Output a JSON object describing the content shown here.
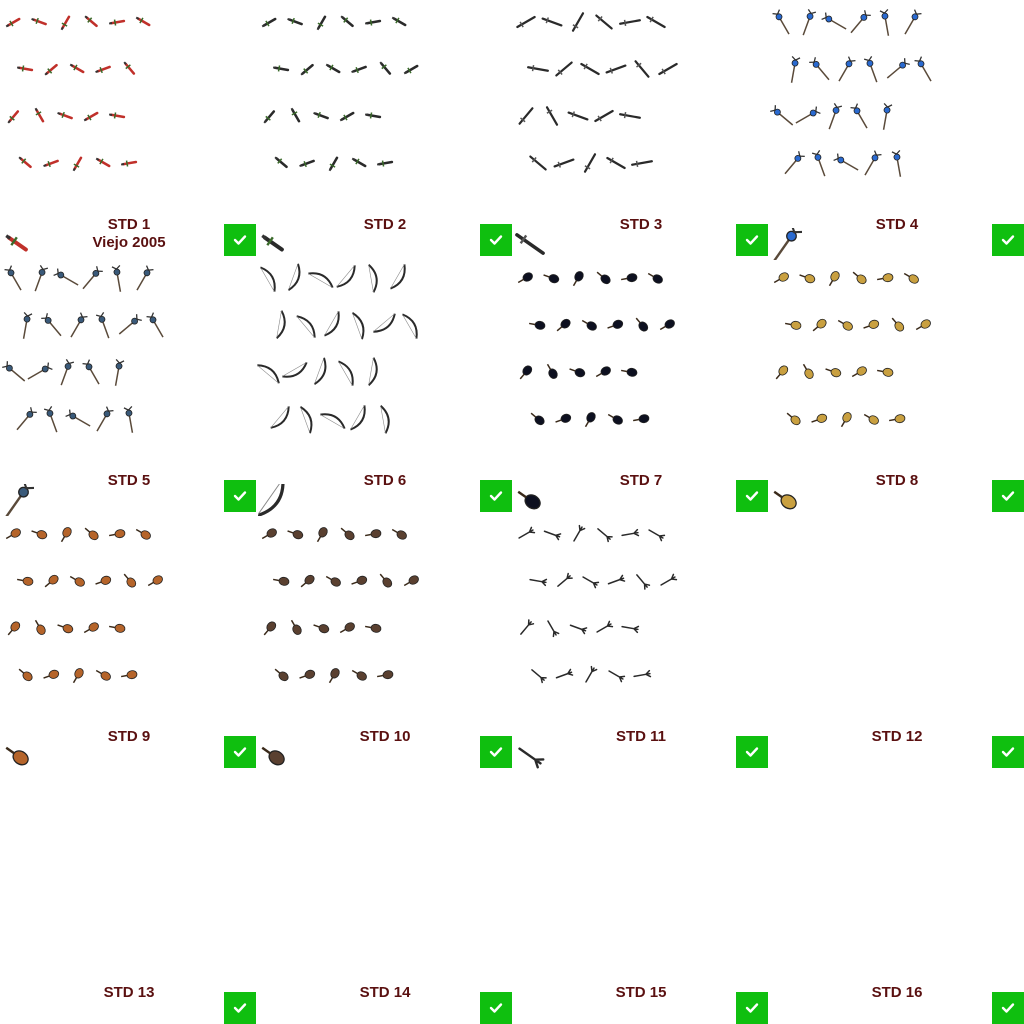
{
  "cells": [
    {
      "label": "STD 1",
      "sublabel": "Viejo 2005",
      "style": "dagger",
      "color": "#c0302a",
      "rows": [
        6,
        5,
        5,
        5
      ],
      "selected": true
    },
    {
      "label": "STD 2",
      "style": "dagger",
      "color": "#2a2a2a",
      "rows": [
        6,
        6,
        5,
        5
      ],
      "selected": true
    },
    {
      "label": "STD 3",
      "style": "sword",
      "color": "#2a2a2a",
      "rows": [
        6,
        6,
        5,
        5
      ],
      "selected": true
    },
    {
      "label": "STD 4",
      "style": "staff",
      "color": "#2a6ad0",
      "rows": [
        6,
        6,
        5,
        5
      ],
      "selected": true
    },
    {
      "label": "STD 5",
      "style": "staff",
      "color": "#3a5a7a",
      "rows": [
        6,
        6,
        5,
        5
      ],
      "selected": true
    },
    {
      "label": "STD 6",
      "style": "bow",
      "color": "#2a2a2a",
      "rows": [
        6,
        6,
        5,
        5
      ],
      "selected": true
    },
    {
      "label": "STD 7",
      "style": "lute",
      "color": "#0d1020",
      "rows": [
        6,
        6,
        5,
        5
      ],
      "selected": true
    },
    {
      "label": "STD 8",
      "style": "lute",
      "color": "#c9a040",
      "rows": [
        6,
        6,
        5,
        5
      ],
      "selected": true
    },
    {
      "label": "STD 9",
      "style": "lute",
      "color": "#b5642a",
      "rows": [
        6,
        6,
        5,
        5
      ],
      "selected": true
    },
    {
      "label": "STD 10",
      "style": "lute",
      "color": "#5a4030",
      "rows": [
        6,
        6,
        5,
        5
      ],
      "selected": true
    },
    {
      "label": "STD 11",
      "style": "claw",
      "color": "#2a2a2a",
      "rows": [
        6,
        6,
        5,
        5
      ],
      "selected": true
    },
    {
      "label": "STD 12",
      "style": "empty",
      "color": "#000000",
      "rows": [
        0,
        0,
        0,
        0
      ],
      "selected": true
    },
    {
      "label": "STD 13",
      "style": "empty",
      "color": "#000000",
      "rows": [
        0,
        0,
        0,
        0
      ],
      "selected": true
    },
    {
      "label": "STD 14",
      "style": "empty",
      "color": "#000000",
      "rows": [
        0,
        0,
        0,
        0
      ],
      "selected": true
    },
    {
      "label": "STD 15",
      "style": "empty",
      "color": "#000000",
      "rows": [
        0,
        0,
        0,
        0
      ],
      "selected": true
    },
    {
      "label": "STD 16",
      "style": "empty",
      "color": "#000000",
      "rows": [
        0,
        0,
        0,
        0
      ],
      "selected": true
    }
  ],
  "check_color": "#0fbf0f",
  "label_color": "#5a1010",
  "icons": {
    "check": "checkmark-icon"
  }
}
